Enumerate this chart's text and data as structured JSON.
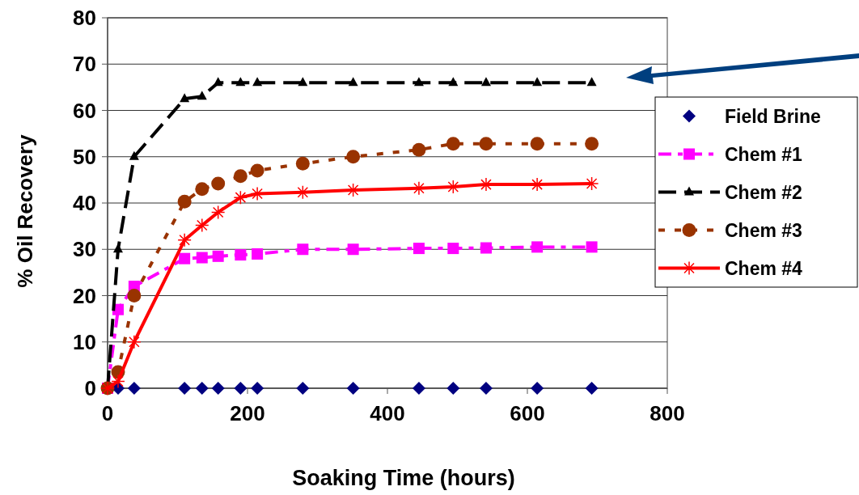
{
  "chart_data": {
    "type": "line",
    "xlabel": "Soaking Time (hours)",
    "ylabel": "% Oil Recovery",
    "xlim": [
      0,
      800
    ],
    "xticks": [
      0,
      200,
      400,
      600,
      800
    ],
    "ylim": [
      0,
      80
    ],
    "yticks": [
      0,
      10,
      20,
      30,
      40,
      50,
      60,
      70,
      80
    ],
    "grid": "y",
    "legend": "right",
    "x": [
      0,
      15,
      38,
      110,
      135,
      158,
      190,
      214,
      279,
      351,
      445,
      494,
      541,
      614,
      692
    ],
    "series": [
      {
        "name": "Field Brine",
        "type": "scatter",
        "color": "#000080",
        "marker": "diamond",
        "values": [
          null,
          0,
          0,
          0,
          0,
          0,
          0,
          0,
          0,
          0,
          0,
          0,
          0,
          0,
          0
        ]
      },
      {
        "name": "Chem #1",
        "color": "#ff00ff",
        "marker": "square",
        "line_style": "dashdot",
        "values": [
          0,
          17,
          22,
          28,
          28.2,
          28.5,
          28.8,
          29,
          30,
          30,
          30.2,
          30.2,
          30.3,
          30.5,
          30.5
        ]
      },
      {
        "name": "Chem #2",
        "color": "#000000",
        "marker": "triangle",
        "line_style": "dashed",
        "values": [
          0,
          30,
          50,
          62.5,
          63,
          66,
          66,
          66,
          66,
          66,
          66,
          66,
          66,
          66,
          66
        ]
      },
      {
        "name": "Chem #3",
        "color": "#993300",
        "marker": "circle",
        "line_style": "dotted",
        "values": [
          0,
          3.5,
          20,
          40.3,
          43,
          44.2,
          45.8,
          47,
          48.5,
          50,
          51.5,
          52.8,
          52.8,
          52.8,
          52.8
        ]
      },
      {
        "name": "Chem #4",
        "color": "#ff0000",
        "marker": "cross",
        "line_style": "solid",
        "values": [
          0,
          1.5,
          10,
          32,
          35.2,
          38,
          41.2,
          42,
          42.3,
          42.8,
          43.2,
          43.5,
          44,
          44,
          44.2
        ]
      }
    ]
  }
}
